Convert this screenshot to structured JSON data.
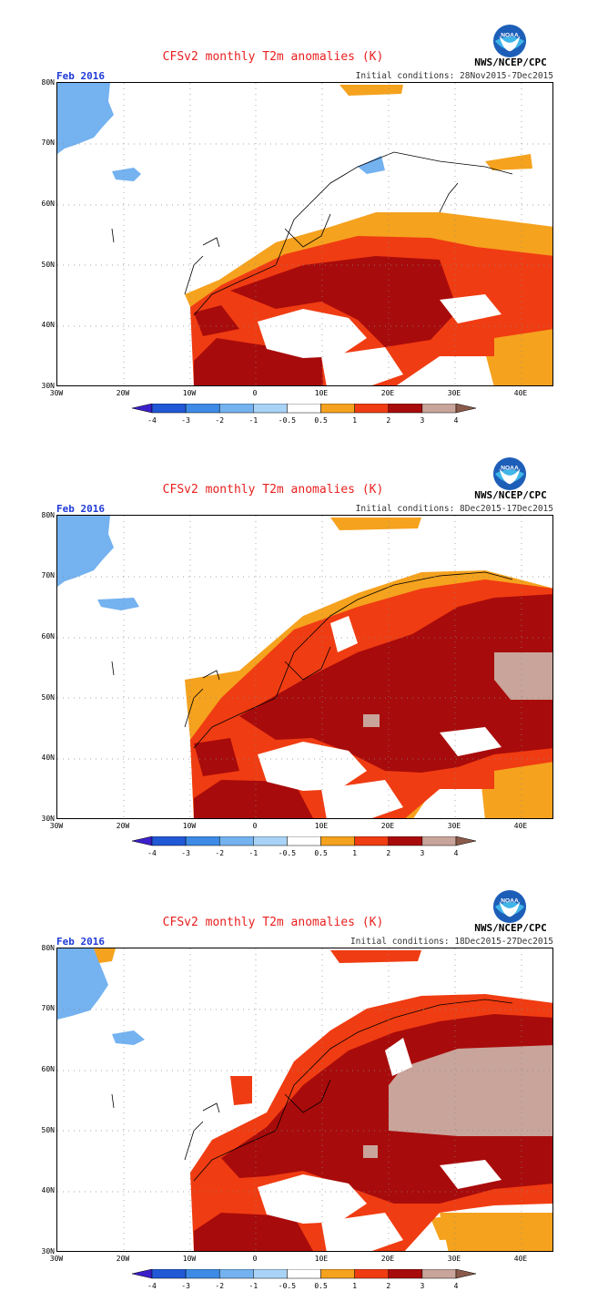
{
  "agency": "NWS/NCEP/CPC",
  "logo_text": "NOAA",
  "panels": [
    {
      "title": "CFSv2 monthly T2m anomalies (K)",
      "month": "Feb 2016",
      "initial_conditions": "Initial conditions: 28Nov2015-7Dec2015",
      "pattern": "moderate"
    },
    {
      "title": "CFSv2 monthly T2m anomalies (K)",
      "month": "Feb 2016",
      "initial_conditions": "Initial conditions: 8Dec2015-17Dec2015",
      "pattern": "strong"
    },
    {
      "title": "CFSv2 monthly T2m anomalies (K)",
      "month": "Feb 2016",
      "initial_conditions": "Initial conditions: 18Dec2015-27Dec2015",
      "pattern": "verystrong"
    }
  ],
  "lat_labels": [
    "80N",
    "70N",
    "60N",
    "50N",
    "40N",
    "30N"
  ],
  "lon_labels": [
    "30W",
    "20W",
    "10W",
    "0",
    "10E",
    "20E",
    "30E",
    "40E"
  ],
  "colorbar": {
    "tick_labels": [
      "-4",
      "-3",
      "-2",
      "-1",
      "-0.5",
      "0.5",
      "1",
      "2",
      "3",
      "4"
    ],
    "colors": [
      "#3d1fc9",
      "#2158d6",
      "#3d8be6",
      "#74b2f0",
      "#a8d3f7",
      "#ffffff",
      "#f5a21e",
      "#f03c12",
      "#a80b0b",
      "#c9a49a",
      "#8a5a4a"
    ]
  },
  "palette": {
    "title_red": "#e8201f",
    "month_blue": "#1f3ad6",
    "cold1": "#74b2f0",
    "warm1": "#f5a21e",
    "warm2": "#f03c12",
    "warm3": "#a80b0b",
    "warm4": "#c9a49a"
  }
}
